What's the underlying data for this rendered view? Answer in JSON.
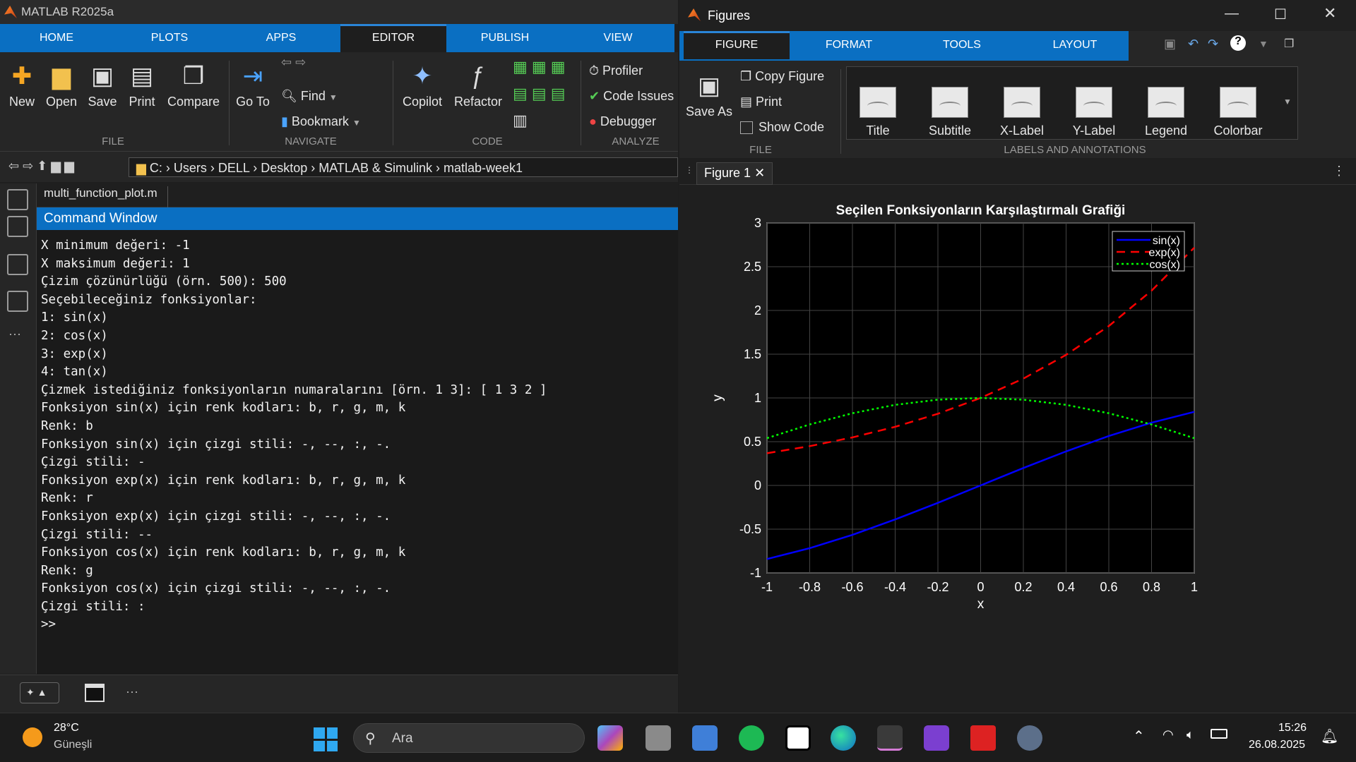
{
  "main_window": {
    "title": "MATLAB R2025a",
    "tabs": [
      "HOME",
      "PLOTS",
      "APPS",
      "EDITOR",
      "PUBLISH",
      "VIEW"
    ],
    "active_tab": "EDITOR",
    "file_group": {
      "label": "FILE",
      "new": "New",
      "open": "Open",
      "save": "Save",
      "print": "Print",
      "compare": "Compare"
    },
    "navigate_group": {
      "label": "NAVIGATE",
      "goto": "Go To",
      "find": "Find",
      "bookmark": "Bookmark"
    },
    "code_group": {
      "label": "CODE",
      "copilot": "Copilot",
      "refactor": "Refactor"
    },
    "analyze_group": {
      "label": "ANALYZE",
      "profiler": "Profiler",
      "code_issues": "Code Issues",
      "debugger": "Debugger"
    },
    "path": [
      "C:",
      "Users",
      "DELL",
      "Desktop",
      "MATLAB & Simulink",
      "matlab-week1"
    ],
    "editor_tab": "multi_function_plot.m",
    "command_window_title": "Command Window",
    "command_lines": [
      "X minimum değeri: -1",
      "X maksimum değeri: 1",
      "Çizim çözünürlüğü (örn. 500): 500",
      "Seçebileceğiniz fonksiyonlar:",
      "1: sin(x)",
      "2: cos(x)",
      "3: exp(x)",
      "4: tan(x)",
      "Çizmek istediğiniz fonksiyonların numaralarını [örn. 1 3]: [ 1 3 2 ]",
      "Fonksiyon sin(x) için renk kodları: b, r, g, m, k",
      "Renk: b",
      "Fonksiyon sin(x) için çizgi stili: -, --, :, -.",
      "Çizgi stili: -",
      "Fonksiyon exp(x) için renk kodları: b, r, g, m, k",
      "Renk: r",
      "Fonksiyon exp(x) için çizgi stili: -, --, :, -.",
      "Çizgi stili: --",
      "Fonksiyon cos(x) için renk kodları: b, r, g, m, k",
      "Renk: g",
      "Fonksiyon cos(x) için çizgi stili: -, --, :, -.",
      "Çizgi stili: :",
      ">>"
    ]
  },
  "figures_window": {
    "title": "Figures",
    "tabs": [
      "FIGURE",
      "FORMAT",
      "TOOLS",
      "LAYOUT"
    ],
    "active_tab": "FIGURE",
    "file_group": {
      "label": "FILE",
      "save_as": "Save As",
      "copy_figure": "Copy Figure",
      "print": "Print",
      "show_code": "Show Code"
    },
    "labels_group": {
      "label": "LABELS AND ANNOTATIONS",
      "items": [
        "Title",
        "Subtitle",
        "X-Label",
        "Y-Label",
        "Legend",
        "Colorbar"
      ]
    },
    "doc_tab": "Figure 1"
  },
  "chart_data": {
    "type": "line",
    "title": "Seçilen Fonksiyonların Karşılaştırmalı Grafiği",
    "xlabel": "x",
    "ylabel": "y",
    "xlim": [
      -1,
      1
    ],
    "ylim": [
      -1,
      3
    ],
    "xticks": [
      "-1",
      "-0.8",
      "-0.6",
      "-0.4",
      "-0.2",
      "0",
      "0.2",
      "0.4",
      "0.6",
      "0.8",
      "1"
    ],
    "yticks": [
      "-1",
      "-0.5",
      "0",
      "0.5",
      "1",
      "1.5",
      "2",
      "2.5",
      "3"
    ],
    "grid": true,
    "legend_position": "top-right",
    "series": [
      {
        "name": "sin(x)",
        "color": "#0000ff",
        "style": "solid",
        "x": [
          -1,
          -0.8,
          -0.6,
          -0.4,
          -0.2,
          0,
          0.2,
          0.4,
          0.6,
          0.8,
          1
        ],
        "y": [
          -0.841,
          -0.717,
          -0.565,
          -0.389,
          -0.199,
          0,
          0.199,
          0.389,
          0.565,
          0.717,
          0.841
        ]
      },
      {
        "name": "exp(x)",
        "color": "#ff0000",
        "style": "dashed",
        "x": [
          -1,
          -0.8,
          -0.6,
          -0.4,
          -0.2,
          0,
          0.2,
          0.4,
          0.6,
          0.8,
          1
        ],
        "y": [
          0.368,
          0.449,
          0.549,
          0.67,
          0.819,
          1,
          1.221,
          1.492,
          1.822,
          2.226,
          2.718
        ]
      },
      {
        "name": "cos(x)",
        "color": "#00ff00",
        "style": "dotted",
        "x": [
          -1,
          -0.8,
          -0.6,
          -0.4,
          -0.2,
          0,
          0.2,
          0.4,
          0.6,
          0.8,
          1
        ],
        "y": [
          0.54,
          0.697,
          0.825,
          0.921,
          0.98,
          1,
          0.98,
          0.921,
          0.825,
          0.697,
          0.54
        ]
      }
    ]
  },
  "taskbar": {
    "weather_temp": "28°C",
    "weather_desc": "Güneşli",
    "search_placeholder": "Ara",
    "time": "15:26",
    "date": "26.08.2025"
  }
}
